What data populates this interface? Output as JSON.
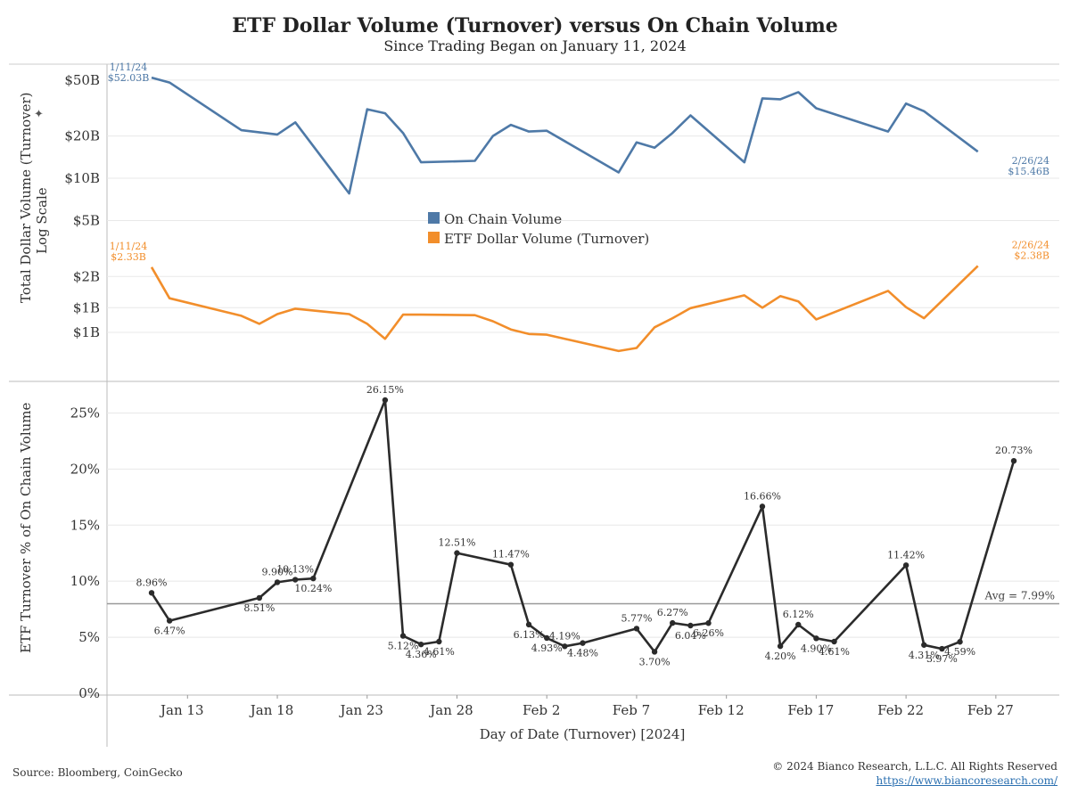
{
  "title": "ETF Dollar Volume (Turnover) versus On Chain Volume",
  "subtitle": "Since Trading Began on January 11, 2024",
  "footer": {
    "source": "Source: Bloomberg, CoinGecko",
    "copyright": "© 2024 Bianco Research, L.L.C. All Rights Reserved",
    "url": "https://www.biancoresearch.com/"
  },
  "colors": {
    "onchain": "#4e79a7",
    "etf": "#f28e2b",
    "pct": "#2b2b2b",
    "avg": "#999999",
    "grid": "#e8e8e8",
    "axis": "#bbbbbb"
  },
  "chart_data": [
    {
      "type": "line",
      "scale": "log",
      "ylabel": "Total Dollar Volume (Turnover)",
      "ylabel2": "Log Scale",
      "yticks": [
        {
          "value": 50,
          "label": "$50B"
        },
        {
          "value": 20,
          "label": "$20B"
        },
        {
          "value": 10,
          "label": "$10B"
        },
        {
          "value": 5,
          "label": "$5B"
        },
        {
          "value": 2,
          "label": "$2B"
        },
        {
          "value": 1.2,
          "label": "$1B"
        },
        {
          "value": 0.8,
          "label": "$1B"
        }
      ],
      "ylim": [
        0.38,
        63
      ],
      "legend": [
        "On Chain Volume",
        "ETF Dollar Volume (Turnover)"
      ],
      "series": [
        {
          "name": "On Chain Volume",
          "days": [
            11,
            12,
            16,
            18,
            19,
            22,
            23,
            24,
            25,
            26,
            29,
            30,
            31,
            1,
            2,
            6,
            7,
            8,
            9,
            10,
            13,
            14,
            15,
            16,
            17,
            21,
            22,
            23,
            26
          ],
          "values": [
            52.03,
            48,
            22,
            20.5,
            25,
            7.8,
            31,
            29,
            21,
            13,
            13.3,
            20,
            24,
            21.5,
            21.8,
            11,
            18,
            16.5,
            21,
            28,
            13,
            37,
            36.5,
            41,
            31.5,
            21.5,
            34,
            30,
            15.46
          ],
          "start_label": [
            "1/11/24",
            "$52.03B"
          ],
          "end_label": [
            "2/26/24",
            "$15.46B"
          ]
        },
        {
          "name": "ETF Dollar Volume (Turnover)",
          "days": [
            11,
            12,
            16,
            17,
            18,
            19,
            22,
            23,
            24,
            25,
            26,
            29,
            30,
            31,
            1,
            2,
            6,
            7,
            8,
            9,
            10,
            13,
            14,
            15,
            16,
            17,
            21,
            22,
            23,
            26
          ],
          "values": [
            2.33,
            1.4,
            1.05,
            0.92,
            1.08,
            1.18,
            1.08,
            0.92,
            0.72,
            1.07,
            1.07,
            1.06,
            0.96,
            0.84,
            0.78,
            0.77,
            0.59,
            0.62,
            0.87,
            1.01,
            1.19,
            1.47,
            1.2,
            1.45,
            1.33,
            0.99,
            1.58,
            1.21,
            1.01,
            2.38
          ],
          "start_label": [
            "1/11/24",
            "$2.33B"
          ],
          "end_label": [
            "2/26/24",
            "$2.38B"
          ]
        }
      ]
    },
    {
      "type": "line",
      "ylabel": "ETF Turnover % of On Chain Volume",
      "yticks": [
        {
          "value": 25,
          "label": "25%"
        },
        {
          "value": 20,
          "label": "20%"
        },
        {
          "value": 15,
          "label": "15%"
        },
        {
          "value": 10,
          "label": "10%"
        },
        {
          "value": 5,
          "label": "5%"
        },
        {
          "value": 0,
          "label": "0%"
        }
      ],
      "ylim": [
        0,
        27.5
      ],
      "avg": 7.99,
      "avg_label": "Avg = 7.99%",
      "points": [
        {
          "day": 11,
          "value": 8.96,
          "label": "8.96%",
          "pos": "above"
        },
        {
          "day": 12,
          "value": 6.47,
          "label": "6.47%",
          "pos": "below"
        },
        {
          "day": 17,
          "value": 8.51,
          "label": "8.51%",
          "pos": "below"
        },
        {
          "day": 18,
          "value": 9.9,
          "label": "9.90%",
          "pos": "above"
        },
        {
          "day": 19,
          "value": 10.13,
          "label": "10.13%",
          "pos": "above"
        },
        {
          "day": 20,
          "value": 10.24,
          "label": "10.24%",
          "pos": "below"
        },
        {
          "day": 24,
          "value": 26.15,
          "label": "26.15%",
          "pos": "above"
        },
        {
          "day": 25,
          "value": 5.12,
          "label": "5.12%",
          "pos": "below"
        },
        {
          "day": 26,
          "value": 4.36,
          "label": "4.36%",
          "pos": "below"
        },
        {
          "day": 27,
          "value": 4.61,
          "label": "4.61%",
          "pos": "below"
        },
        {
          "day": 28,
          "value": 12.51,
          "label": "12.51%",
          "pos": "above"
        },
        {
          "day": 31,
          "value": 11.47,
          "label": "11.47%",
          "pos": "above"
        },
        {
          "day": 32,
          "value": 6.13,
          "label": "6.13%",
          "pos": "below"
        },
        {
          "day": 33,
          "value": 4.93,
          "label": "4.93%",
          "pos": "below"
        },
        {
          "day": 34,
          "value": 4.19,
          "label": "4.19%",
          "pos": "above"
        },
        {
          "day": 35,
          "value": 4.48,
          "label": "4.48%",
          "pos": "below"
        },
        {
          "day": 38,
          "value": 5.77,
          "label": "5.77%",
          "pos": "above"
        },
        {
          "day": 39,
          "value": 3.7,
          "label": "3.70%",
          "pos": "below"
        },
        {
          "day": 40,
          "value": 6.27,
          "label": "6.27%",
          "pos": "above"
        },
        {
          "day": 41,
          "value": 6.04,
          "label": "6.04%",
          "pos": "below"
        },
        {
          "day": 42,
          "value": 6.26,
          "label": "6.26%",
          "pos": "below"
        },
        {
          "day": 45,
          "value": 16.66,
          "label": "16.66%",
          "pos": "above"
        },
        {
          "day": 46,
          "value": 4.2,
          "label": "4.20%",
          "pos": "below"
        },
        {
          "day": 47,
          "value": 6.12,
          "label": "6.12%",
          "pos": "above"
        },
        {
          "day": 48,
          "value": 4.9,
          "label": "4.90%",
          "pos": "below"
        },
        {
          "day": 49,
          "value": 4.61,
          "label": "4.61%",
          "pos": "below"
        },
        {
          "day": 53,
          "value": 11.42,
          "label": "11.42%",
          "pos": "above"
        },
        {
          "day": 54,
          "value": 4.31,
          "label": "4.31%",
          "pos": "below"
        },
        {
          "day": 55,
          "value": 3.97,
          "label": "3.97%",
          "pos": "below"
        },
        {
          "day": 56,
          "value": 4.59,
          "label": "4.59%",
          "pos": "below"
        },
        {
          "day": 59,
          "value": 20.73,
          "label": "20.73%",
          "pos": "above"
        }
      ]
    }
  ],
  "x_axis": {
    "label": "Day of Date (Turnover) [2024]",
    "ticks": [
      {
        "day": 13,
        "label": "Jan 13"
      },
      {
        "day": 18,
        "label": "Jan 18"
      },
      {
        "day": 23,
        "label": "Jan 23"
      },
      {
        "day": 28,
        "label": "Jan 28"
      },
      {
        "day": 33,
        "label": "Feb 2"
      },
      {
        "day": 38,
        "label": "Feb 7"
      },
      {
        "day": 43,
        "label": "Feb 12"
      },
      {
        "day": 48,
        "label": "Feb 17"
      },
      {
        "day": 53,
        "label": "Feb 22"
      },
      {
        "day": 58,
        "label": "Feb 27"
      }
    ]
  }
}
